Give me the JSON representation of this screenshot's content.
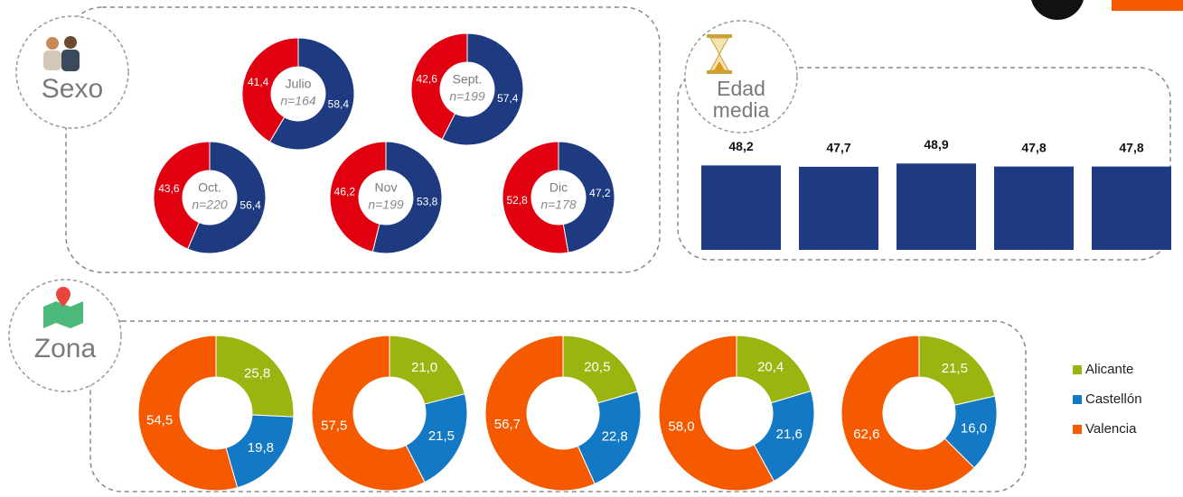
{
  "chart_data": [
    {
      "type": "donut",
      "title": "Sexo",
      "colors": [
        "#1e3a80",
        "#e0000f"
      ],
      "categories": [
        "Julio",
        "Sept.",
        "Oct.",
        "Nov",
        "Dic"
      ],
      "subtitles": [
        "n=164",
        "n=199",
        "n=220",
        "n=199",
        "n=178"
      ],
      "values": [
        [
          58.4,
          41.4
        ],
        [
          57.4,
          42.6
        ],
        [
          56.4,
          43.6
        ],
        [
          53.8,
          46.2
        ],
        [
          47.2,
          52.8
        ]
      ],
      "value_labels": [
        [
          "58,4",
          "41,4"
        ],
        [
          "57,4",
          "42,6"
        ],
        [
          "56,4",
          "43,6"
        ],
        [
          "53,8",
          "46,2"
        ],
        [
          "47,2",
          "52,8"
        ]
      ]
    },
    {
      "type": "bar",
      "title": "Edad media",
      "color": "#1e3a80",
      "categories": [
        null,
        null,
        null,
        null,
        null
      ],
      "values": [
        48.2,
        47.7,
        48.9,
        47.8,
        47.8
      ],
      "value_labels": [
        "48,2",
        "47,7",
        "48,9",
        "47,8",
        "47,8"
      ],
      "ylim": [
        17,
        50
      ]
    },
    {
      "type": "donut-series",
      "title": "Zona",
      "series": [
        {
          "name": "Alicante",
          "color": "#9bb40f",
          "values": [
            25.8,
            21.0,
            20.5,
            20.4,
            21.5
          ],
          "value_labels": [
            "25,8",
            "21,0",
            "20,5",
            "20,4",
            "21,5"
          ]
        },
        {
          "name": "Castellón",
          "color": "#1479c4",
          "values": [
            19.8,
            21.5,
            22.8,
            21.6,
            16.0
          ],
          "value_labels": [
            "19,8",
            "21,5",
            "22,8",
            "21,6",
            "16,0"
          ]
        },
        {
          "name": "Valencia",
          "color": "#f65a00",
          "values": [
            54.5,
            57.5,
            56.7,
            58.0,
            62.6
          ],
          "value_labels": [
            "54,5",
            "57,5",
            "56,7",
            "58,0",
            "62,6"
          ]
        }
      ]
    }
  ]
}
